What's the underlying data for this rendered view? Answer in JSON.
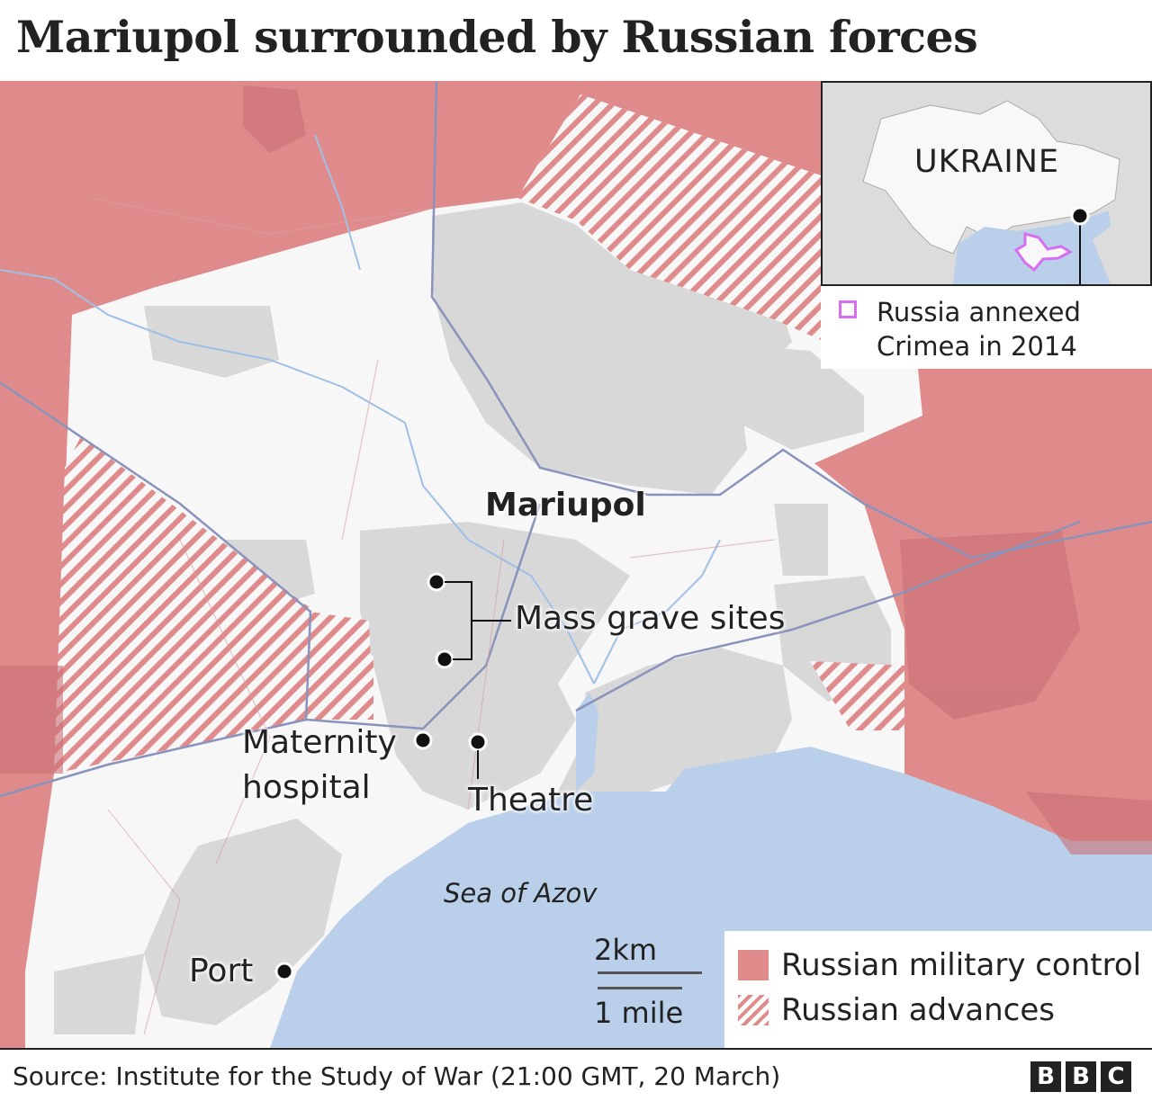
{
  "title": "Mariupol surrounded by Russian forces",
  "colors": {
    "russian_control": "#df8b8c",
    "land": "#f7f7f7",
    "urban": "#d6d6d6",
    "sea": "#b9cfea",
    "crimea_outline": "#d96ff0",
    "roads": "#7f8db8"
  },
  "map_labels": {
    "city": "Mariupol",
    "mass_graves": "Mass grave sites",
    "maternity_hospital_line1": "Maternity",
    "maternity_hospital_line2": "hospital",
    "theatre": "Theatre",
    "sea": "Sea of Azov",
    "port": "Port"
  },
  "inset": {
    "country": "UKRAINE",
    "crimea_legend": "Russia annexed Crimea in 2014"
  },
  "scale": {
    "km": "2km",
    "mile": "1 mile"
  },
  "legend": {
    "items": [
      {
        "label": "Russian military control",
        "style": "solid"
      },
      {
        "label": "Russian advances",
        "style": "hatched"
      }
    ]
  },
  "source": "Source: Institute for the Study of War (21:00 GMT, 20 March)",
  "logo": [
    "B",
    "B",
    "C"
  ]
}
